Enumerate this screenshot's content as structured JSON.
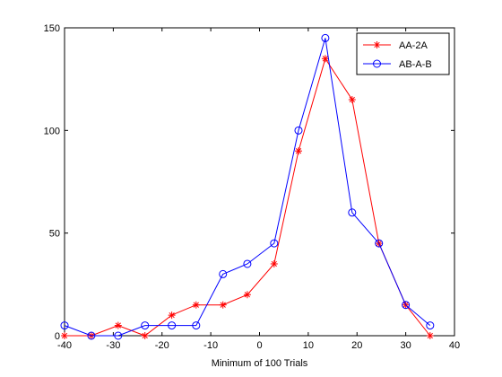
{
  "chart_data": {
    "type": "line",
    "title": "",
    "xlabel": "Minimum of 100 Trials",
    "ylabel": "",
    "xlim": [
      -40,
      40
    ],
    "ylim": [
      0,
      150
    ],
    "x_ticks": [
      -40,
      -30,
      -20,
      -10,
      0,
      10,
      20,
      30,
      40
    ],
    "y_ticks": [
      0,
      50,
      100,
      150
    ],
    "grid": false,
    "legend_position": "top-right",
    "series": [
      {
        "name": "AA-2A",
        "color": "#ff0000",
        "marker": "asterisk",
        "x": [
          -40,
          -34.5,
          -29,
          -23.5,
          -18,
          -13,
          -7.5,
          -2.5,
          3,
          8,
          13.5,
          19,
          24.5,
          30,
          35
        ],
        "y": [
          0,
          0,
          5,
          0,
          10,
          15,
          15,
          20,
          35,
          90,
          135,
          115,
          45,
          15,
          0
        ]
      },
      {
        "name": "AB-A-B",
        "color": "#0000ff",
        "marker": "circle",
        "x": [
          -40,
          -34.5,
          -29,
          -23.5,
          -18,
          -13,
          -7.5,
          -2.5,
          3,
          8,
          13.5,
          19,
          24.5,
          30,
          35
        ],
        "y": [
          5,
          0,
          0,
          5,
          5,
          5,
          30,
          35,
          45,
          100,
          145,
          60,
          45,
          15,
          5
        ]
      }
    ]
  }
}
